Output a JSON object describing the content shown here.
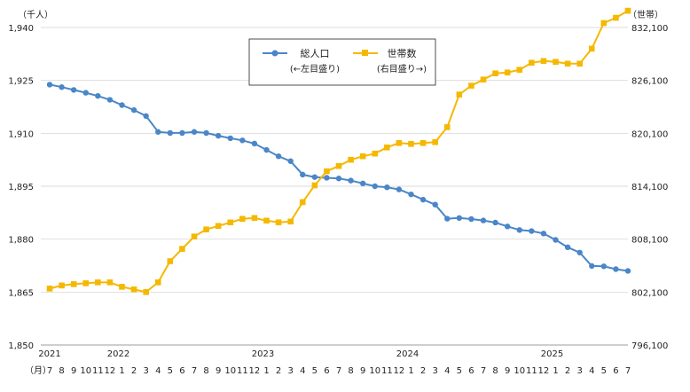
{
  "chart_data": {
    "type": "line",
    "left_unit": "（千人）",
    "right_unit": "（世帯）",
    "month_axis_label": "（月）",
    "left_axis": {
      "min": 1850,
      "max": 1940,
      "ticks": [
        1850,
        1865,
        1880,
        1895,
        1910,
        1925,
        1940
      ],
      "tick_labels": [
        "1,850",
        "1,865",
        "1,880",
        "1,895",
        "1,910",
        "1,925",
        "1,940"
      ]
    },
    "right_axis": {
      "min": 796100,
      "max": 832100,
      "ticks": [
        796100,
        802100,
        808100,
        814100,
        820100,
        826100,
        832100
      ],
      "tick_labels": [
        "796,100",
        "802,100",
        "808,100",
        "814,100",
        "820,100",
        "826,100",
        "832,100"
      ]
    },
    "months": [
      "7",
      "8",
      "9",
      "10",
      "11",
      "12",
      "1",
      "2",
      "3",
      "4",
      "5",
      "6",
      "7",
      "8",
      "9",
      "10",
      "11",
      "12",
      "1",
      "2",
      "3",
      "4",
      "5",
      "6",
      "7",
      "8",
      "9",
      "10",
      "11",
      "12",
      "1",
      "2",
      "3",
      "4",
      "5",
      "6",
      "7",
      "8",
      "9",
      "10",
      "11",
      "12",
      "1",
      "2",
      "3",
      "4",
      "5",
      "6",
      "7"
    ],
    "years": [
      {
        "label": "2021",
        "index": 0
      },
      {
        "label": "2022",
        "index": 6
      },
      {
        "label": "2023",
        "index": 18
      },
      {
        "label": "2024",
        "index": 30
      },
      {
        "label": "2025",
        "index": 42
      }
    ],
    "legend": [
      {
        "name": "総人口",
        "sub": "(←左目盛り)",
        "color": "#4a86c8"
      },
      {
        "name": "世帯数",
        "sub": "(右目盛り→)",
        "color": "#f5b800"
      }
    ],
    "series": [
      {
        "name": "総人口",
        "axis": "left",
        "color": "#4a86c8",
        "marker": "circle",
        "values": [
          1923.8,
          1923.1,
          1922.3,
          1921.5,
          1920.6,
          1919.5,
          1918.0,
          1916.6,
          1914.9,
          1910.4,
          1910.1,
          1910.1,
          1910.4,
          1910.1,
          1909.3,
          1908.6,
          1908.0,
          1907.1,
          1905.3,
          1903.5,
          1902.1,
          1898.3,
          1897.6,
          1897.4,
          1897.2,
          1896.6,
          1895.8,
          1895.0,
          1894.7,
          1894.1,
          1892.7,
          1891.2,
          1889.8,
          1885.8,
          1886.0,
          1885.7,
          1885.3,
          1884.7,
          1883.6,
          1882.6,
          1882.3,
          1881.6,
          1879.8,
          1877.7,
          1876.2,
          1872.4,
          1872.3,
          1871.5,
          1871.0
        ]
      },
      {
        "name": "世帯数",
        "axis": "right",
        "color": "#f5b800",
        "marker": "square",
        "values": [
          802500,
          802850,
          803000,
          803100,
          803200,
          803200,
          802700,
          802400,
          802100,
          803200,
          805600,
          807000,
          808400,
          809200,
          809600,
          810000,
          810400,
          810500,
          810200,
          810000,
          810100,
          812300,
          814200,
          815800,
          816400,
          817100,
          817500,
          817800,
          818500,
          819000,
          818900,
          819000,
          819100,
          820800,
          824500,
          825500,
          826200,
          826900,
          827000,
          827300,
          828100,
          828300,
          828200,
          828000,
          828000,
          829700,
          832600,
          833200,
          834000
        ]
      }
    ]
  }
}
